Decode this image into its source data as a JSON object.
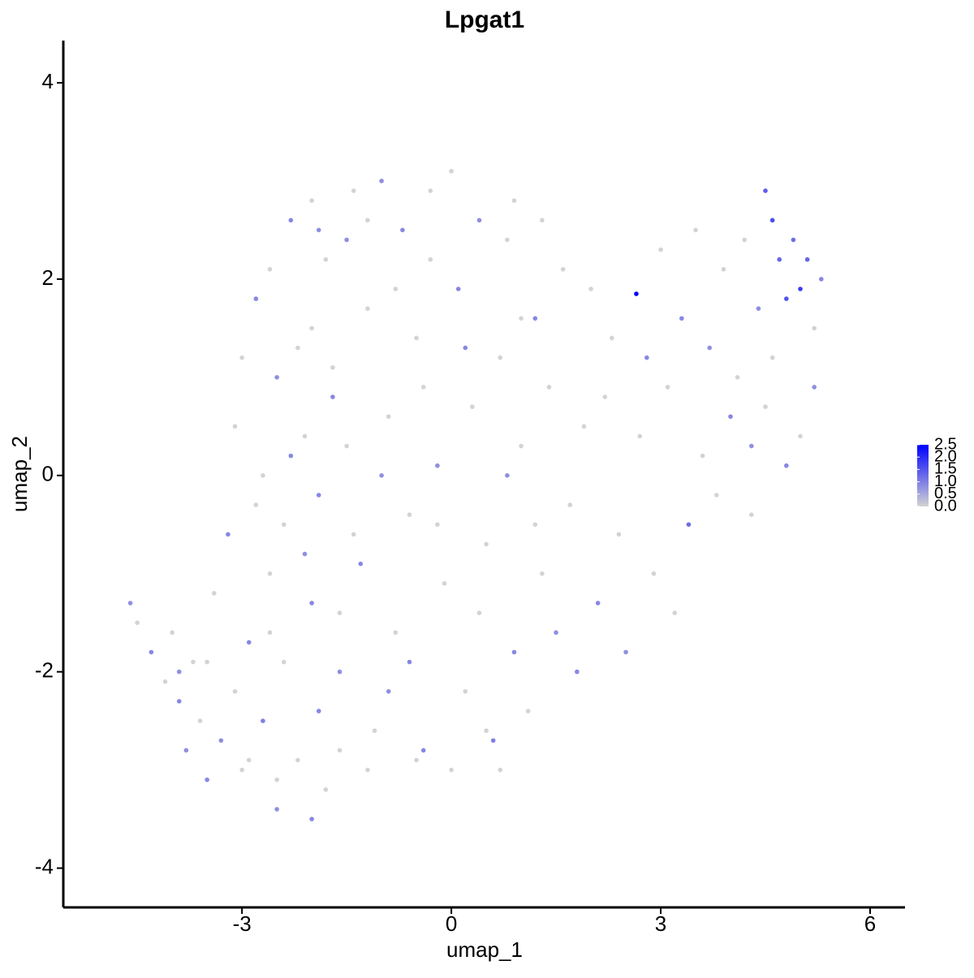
{
  "chart_data": {
    "type": "scatter",
    "title": "Lpgat1",
    "x_label": "umap_1",
    "y_label": "umap_2",
    "xlim": [
      -5.56,
      6.5
    ],
    "ylim": [
      -4.4,
      4.43
    ],
    "xticks": [
      -3,
      0,
      3,
      6
    ],
    "yticks": [
      -4,
      -2,
      0,
      2,
      4
    ],
    "color_low": "#d3d3d3",
    "color_high": "#0000ff",
    "clim": [
      0,
      2.5
    ],
    "colorbar_ticks": [
      {
        "value": 0,
        "label": "0.0"
      },
      0.5,
      {
        "value": 1,
        "label": "1.0"
      },
      1.5,
      {
        "value": 2,
        "label": "2.0"
      },
      2.5
    ],
    "x": [
      -4.6,
      -4.5,
      -4.3,
      -4.1,
      -4.0,
      -3.9,
      -3.8,
      -3.7,
      -3.6,
      -3.5,
      -3.4,
      -3.3,
      -3.2,
      -3.1,
      -3.0,
      -2.9,
      -2.8,
      -2.7,
      -2.6,
      -2.5,
      -2.4,
      -2.3,
      -2.2,
      -2.1,
      -2.0,
      -1.9,
      -1.8,
      -1.7,
      -1.6,
      -1.5,
      -3.1,
      -3.0,
      -2.8,
      -2.7,
      -2.6,
      -2.5,
      -2.4,
      -2.3,
      -2.2,
      -2.1,
      -2.0,
      -1.9,
      -1.8,
      -1.7,
      -1.6,
      -1.5,
      -1.4,
      -1.3,
      -1.2,
      -1.1,
      -1.0,
      -0.9,
      -0.8,
      -0.7,
      -0.6,
      -0.5,
      -0.4,
      -0.3,
      -0.2,
      -0.1,
      0.0,
      0.1,
      0.2,
      0.3,
      0.4,
      0.5,
      0.6,
      0.7,
      0.8,
      0.9,
      1.0,
      1.1,
      1.2,
      1.3,
      1.4,
      1.5,
      1.6,
      1.7,
      1.8,
      1.9,
      2.0,
      2.1,
      2.2,
      2.3,
      2.4,
      2.5,
      2.65,
      2.7,
      2.8,
      2.9,
      3.0,
      3.1,
      3.2,
      3.3,
      3.4,
      3.5,
      3.6,
      3.7,
      3.8,
      3.9,
      4.0,
      4.1,
      4.2,
      4.3,
      4.4,
      4.5,
      4.6,
      4.7,
      4.8,
      4.9,
      5.0,
      5.1,
      5.2,
      5.3,
      5.2,
      5.0,
      4.8,
      4.6,
      4.5,
      4.3,
      -0.5,
      0.0,
      -1.2,
      -2.0,
      -2.5,
      0.5,
      0.7,
      -0.9,
      -1.6,
      -2.9,
      -0.3,
      0.9,
      1.3,
      -1.9,
      -1.2,
      -0.8,
      0.2,
      1.0,
      -0.4,
      -1.0,
      -0.6,
      0.4,
      1.2,
      0.8,
      -0.2,
      -1.4,
      -2.0,
      -2.6,
      -3.5,
      -3.9
    ],
    "y": [
      -1.3,
      -1.5,
      -1.8,
      -2.1,
      -1.6,
      -2.3,
      -2.8,
      -1.9,
      -2.5,
      -3.1,
      -1.2,
      -2.7,
      -0.6,
      -2.2,
      -3.0,
      -1.7,
      -0.3,
      -2.5,
      -1.0,
      -3.4,
      -1.9,
      0.2,
      -2.9,
      -0.8,
      1.5,
      -2.4,
      -3.2,
      0.8,
      -1.4,
      2.4,
      0.5,
      1.2,
      1.8,
      0.0,
      2.1,
      1.0,
      -0.5,
      2.6,
      1.3,
      0.4,
      2.8,
      -0.2,
      2.2,
      1.1,
      -2.0,
      0.3,
      2.9,
      -0.9,
      1.7,
      -2.6,
      3.0,
      0.6,
      -1.6,
      2.5,
      -0.4,
      1.4,
      -2.8,
      2.9,
      0.1,
      -1.1,
      3.1,
      1.9,
      -2.2,
      0.7,
      2.6,
      -0.7,
      -2.7,
      1.2,
      2.4,
      -1.8,
      0.3,
      -2.4,
      1.6,
      -1.0,
      0.9,
      -1.6,
      2.1,
      -0.3,
      -2.0,
      0.5,
      1.9,
      -1.3,
      0.8,
      1.4,
      -0.6,
      -1.8,
      1.85,
      0.4,
      1.2,
      -1.0,
      2.3,
      0.9,
      -1.4,
      1.6,
      -0.5,
      2.5,
      0.2,
      1.3,
      -0.2,
      2.1,
      0.6,
      1.0,
      2.4,
      -0.4,
      1.7,
      2.9,
      2.6,
      2.2,
      1.8,
      2.4,
      1.9,
      2.2,
      1.5,
      2.0,
      0.9,
      0.4,
      0.1,
      1.2,
      0.7,
      0.3,
      -2.9,
      -3.0,
      -3.0,
      -3.5,
      -3.1,
      -2.6,
      -3.0,
      -2.2,
      -2.8,
      -2.9,
      2.2,
      2.8,
      2.6,
      2.5,
      2.6,
      1.9,
      1.3,
      1.6,
      0.9,
      0.0,
      -1.9,
      -1.4,
      -0.5,
      0.0,
      -0.5,
      -0.6,
      -1.3,
      -1.6,
      -1.9,
      -2.0
    ],
    "expression": [
      0.8,
      0,
      0.9,
      0,
      0,
      0.9,
      0.8,
      0,
      0,
      0.9,
      0,
      0.8,
      0.9,
      0,
      0,
      0.9,
      0,
      1.0,
      0,
      0.8,
      0,
      0.9,
      0,
      0.8,
      0,
      0.9,
      0,
      0.9,
      0,
      0.8,
      0,
      0,
      0.9,
      0,
      0,
      0.8,
      0,
      0.9,
      0,
      0,
      0,
      0.9,
      0,
      0,
      0.8,
      0,
      0,
      0.9,
      0,
      0,
      0.8,
      0,
      0,
      0.9,
      0,
      0,
      0.9,
      0,
      0.8,
      0,
      0,
      0.9,
      0,
      0,
      0.8,
      0,
      1.0,
      0,
      0,
      0.9,
      0,
      0,
      0.9,
      0,
      0,
      0.8,
      0,
      0,
      0.9,
      0,
      0,
      0.9,
      0,
      0,
      0,
      0.8,
      2.5,
      0,
      0.9,
      0,
      0,
      0,
      0,
      0.9,
      1.2,
      0,
      0,
      0.8,
      0,
      0,
      0.9,
      0,
      0,
      0,
      0.8,
      1.4,
      1.6,
      1.3,
      1.5,
      1.2,
      1.8,
      1.3,
      0,
      0.9,
      0.8,
      0,
      0.9,
      0,
      0,
      0.8,
      0,
      0,
      0,
      0.9,
      0,
      0,
      0,
      0.8,
      0,
      0,
      0,
      0,
      0,
      0.8,
      0,
      0,
      0.9,
      0,
      0,
      0.8,
      0.9,
      0,
      0,
      0.8,
      0,
      0,
      0.9,
      0,
      0,
      0.8
    ]
  }
}
